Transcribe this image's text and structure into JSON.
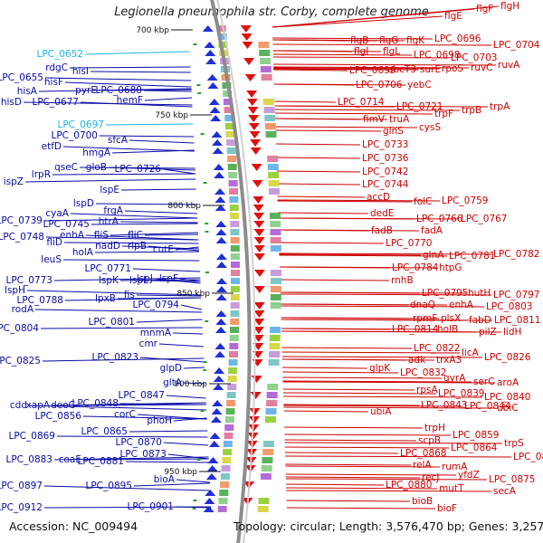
{
  "title": "Legionella pneumophila str. Corby, complete genome",
  "footer": {
    "accession": "Accession: NC_009494",
    "topology_text": "Topology: circular; Length: 3,576,470 bp; Genes: 3,257"
  },
  "colors": {
    "left_labels": "#0a0aa8",
    "right_labels": "#cc0000",
    "highlight_labels": "#1ab3e6",
    "backbone": "#8c8c8c"
  },
  "ticks": [
    "700 kbp",
    "750 kbp",
    "800 kbp",
    "850 kbp",
    "900 kbp",
    "950 kbp"
  ],
  "left_labels": [
    {
      "text": "LPC_0652",
      "highlight": true
    },
    {
      "text": "rdgC"
    },
    {
      "text": "hisI"
    },
    {
      "text": "LPC_0655"
    },
    {
      "text": "hisF"
    },
    {
      "text": "hisA"
    },
    {
      "text": "pyrE"
    },
    {
      "text": "LPC_0680"
    },
    {
      "text": "hisD"
    },
    {
      "text": "LPC_0677"
    },
    {
      "text": "hemF"
    },
    {
      "text": "LPC_0697",
      "highlight": true
    },
    {
      "text": "LPC_0700"
    },
    {
      "text": "sfcA"
    },
    {
      "text": "etfD"
    },
    {
      "text": "hmgA"
    },
    {
      "text": "lrpR"
    },
    {
      "text": "qseC"
    },
    {
      "text": "gloB"
    },
    {
      "text": "LPC_0726"
    },
    {
      "text": "ispZ"
    },
    {
      "text": "lspE"
    },
    {
      "text": "lspD"
    },
    {
      "text": "frgA"
    },
    {
      "text": "cyaA"
    },
    {
      "text": "LPC_0739"
    },
    {
      "text": "LPC_0745"
    },
    {
      "text": "htrA"
    },
    {
      "text": "LPC_0748"
    },
    {
      "text": "enhA"
    },
    {
      "text": "fliS"
    },
    {
      "text": "fliC"
    },
    {
      "text": "fliD"
    },
    {
      "text": "nadD"
    },
    {
      "text": "rlpB"
    },
    {
      "text": "cutE"
    },
    {
      "text": "holA"
    },
    {
      "text": "leuS"
    },
    {
      "text": "LPC_0771"
    },
    {
      "text": "lspJ"
    },
    {
      "text": "LPC_0773"
    },
    {
      "text": "lspK"
    },
    {
      "text": "lspL"
    },
    {
      "text": "lspF"
    },
    {
      "text": "lspH"
    },
    {
      "text": "LPC_0788"
    },
    {
      "text": "lpxB"
    },
    {
      "text": "fis"
    },
    {
      "text": "rodA"
    },
    {
      "text": "LPC_0794"
    },
    {
      "text": "LPC_0801"
    },
    {
      "text": "LPC_0804"
    },
    {
      "text": "mnmA"
    },
    {
      "text": "cmr"
    },
    {
      "text": "LPC_0823"
    },
    {
      "text": "LPC_0825"
    },
    {
      "text": "glpD"
    },
    {
      "text": "gltA"
    },
    {
      "text": "LPC_0847"
    },
    {
      "text": "cdd"
    },
    {
      "text": "xapA"
    },
    {
      "text": "deoC"
    },
    {
      "text": "LPC_0848"
    },
    {
      "text": "LPC_0856"
    },
    {
      "text": "corC"
    },
    {
      "text": "phoH"
    },
    {
      "text": "LPC_0865"
    },
    {
      "text": "LPC_0869"
    },
    {
      "text": "LPC_0870"
    },
    {
      "text": "LPC_0873"
    },
    {
      "text": "LPC_0883"
    },
    {
      "text": "coaE"
    },
    {
      "text": "LPC_0881"
    },
    {
      "text": "bioA"
    },
    {
      "text": "LPC_0897"
    },
    {
      "text": "LPC_0895"
    },
    {
      "text": "LPC_0912"
    },
    {
      "text": "LPC_0901"
    }
  ],
  "right_labels": [
    {
      "text": "flgE"
    },
    {
      "text": "flgF"
    },
    {
      "text": "flgH"
    },
    {
      "text": "flgB"
    },
    {
      "text": "flgG"
    },
    {
      "text": "flgK"
    },
    {
      "text": "LPC_0696"
    },
    {
      "text": "LPC_0704"
    },
    {
      "text": "flgI"
    },
    {
      "text": "flgL"
    },
    {
      "text": "LPC_0698"
    },
    {
      "text": "LPC_0703"
    },
    {
      "text": "LPC_0699"
    },
    {
      "text": "abcT3"
    },
    {
      "text": "surE"
    },
    {
      "text": "rpoS"
    },
    {
      "text": "ruvC"
    },
    {
      "text": "ruvA"
    },
    {
      "text": "LPC_0706"
    },
    {
      "text": "yebC"
    },
    {
      "text": "LPC_0714"
    },
    {
      "text": "LPC_0721"
    },
    {
      "text": "trpF"
    },
    {
      "text": "trpB"
    },
    {
      "text": "trpA"
    },
    {
      "text": "fimV"
    },
    {
      "text": "truA"
    },
    {
      "text": "glnS"
    },
    {
      "text": "cysS"
    },
    {
      "text": "LPC_0733"
    },
    {
      "text": "LPC_0736"
    },
    {
      "text": "LPC_0742"
    },
    {
      "text": "LPC_0744"
    },
    {
      "text": "accD"
    },
    {
      "text": "folC"
    },
    {
      "text": "LPC_0759"
    },
    {
      "text": "dedE"
    },
    {
      "text": "LPC_0766"
    },
    {
      "text": "LPC_0767"
    },
    {
      "text": "fadB"
    },
    {
      "text": "fadA"
    },
    {
      "text": "LPC_0770"
    },
    {
      "text": "glnA"
    },
    {
      "text": "LPC_0781"
    },
    {
      "text": "LPC_0782"
    },
    {
      "text": "LPC_0784"
    },
    {
      "text": "htpG"
    },
    {
      "text": "rnhB"
    },
    {
      "text": "LPC_0795"
    },
    {
      "text": "hutH"
    },
    {
      "text": "LPC_0797"
    },
    {
      "text": "dnaQ"
    },
    {
      "text": "enhA"
    },
    {
      "text": "LPC_0803"
    },
    {
      "text": "rpmF"
    },
    {
      "text": "plsX"
    },
    {
      "text": "fabD"
    },
    {
      "text": "LPC_0811"
    },
    {
      "text": "LPC_0814"
    },
    {
      "text": "holB"
    },
    {
      "text": "pilZ"
    },
    {
      "text": "lidH"
    },
    {
      "text": "LPC_0822"
    },
    {
      "text": "licA"
    },
    {
      "text": "adk"
    },
    {
      "text": "trxA3"
    },
    {
      "text": "LPC_0826"
    },
    {
      "text": "glpK"
    },
    {
      "text": "LPC_0832"
    },
    {
      "text": "gyrA"
    },
    {
      "text": "serC"
    },
    {
      "text": "aroA"
    },
    {
      "text": "rpsA"
    },
    {
      "text": "LPC_0839"
    },
    {
      "text": "LPC_0840"
    },
    {
      "text": "LPC_0843"
    },
    {
      "text": "LPC_0844"
    },
    {
      "text": "ubiC"
    },
    {
      "text": "ubiA"
    },
    {
      "text": "trpH"
    },
    {
      "text": "LPC_0859"
    },
    {
      "text": "trpS"
    },
    {
      "text": "scpB"
    },
    {
      "text": "LPC_0864"
    },
    {
      "text": "LPC_0866"
    },
    {
      "text": "LPC_0868"
    },
    {
      "text": "relA"
    },
    {
      "text": "rumA"
    },
    {
      "text": "recJ"
    },
    {
      "text": "yfdZ"
    },
    {
      "text": "LPC_0875"
    },
    {
      "text": "LPC_0880"
    },
    {
      "text": "mutT"
    },
    {
      "text": "secA"
    },
    {
      "text": "bioB"
    },
    {
      "text": "bioF"
    }
  ]
}
